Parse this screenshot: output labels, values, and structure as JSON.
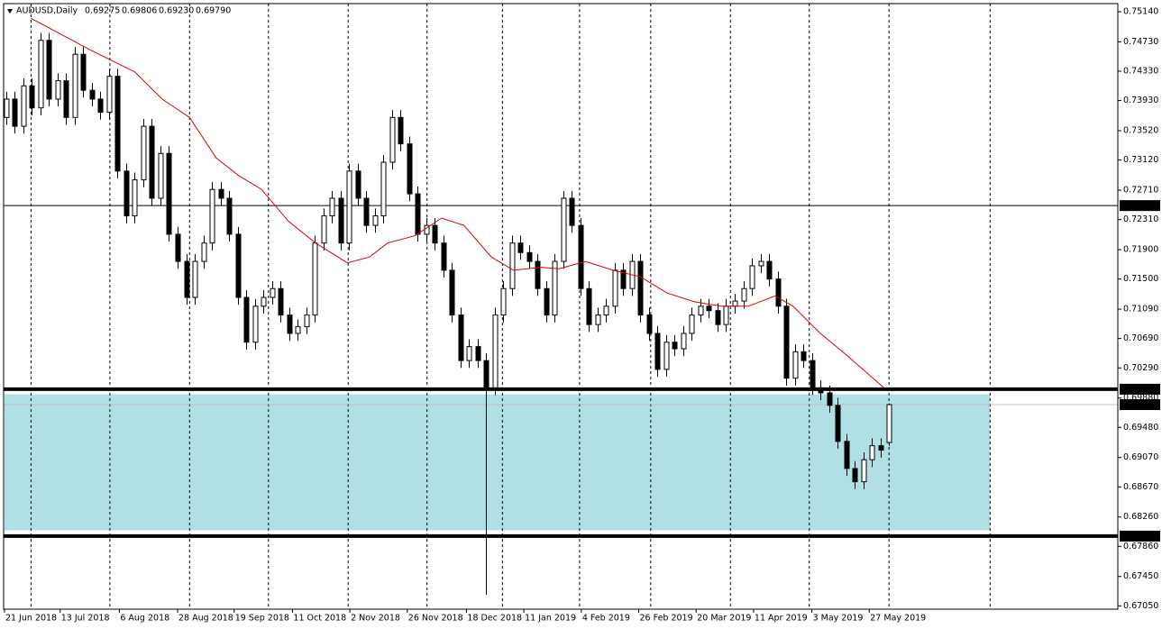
{
  "chart_data": {
    "type": "candlestick",
    "title": "AUDUSD,Daily",
    "header_prices": [
      "0.69275",
      "0.69806",
      "0.69230",
      "0.69790"
    ],
    "open": [
      0.737,
      0.7395,
      0.7358,
      0.7413,
      0.7383,
      0.7475,
      0.7395,
      0.742,
      0.737,
      0.7456,
      0.7407,
      0.7395,
      0.7377,
      0.7426,
      0.7297,
      0.7236,
      0.7285,
      0.7358,
      0.726,
      0.7321,
      0.7211,
      0.7174,
      0.7125,
      0.7174,
      0.7199,
      0.7272,
      0.726,
      0.7211,
      0.7125,
      0.7064,
      0.7113,
      0.7125,
      0.7137,
      0.7101,
      0.7076,
      0.7085,
      0.7101,
      0.7199,
      0.7236,
      0.726,
      0.7199,
      0.7297,
      0.726,
      0.7223,
      0.7236,
      0.7309,
      0.737,
      0.7334,
      0.7266,
      0.7211,
      0.7223,
      0.7199,
      0.7162,
      0.7101,
      0.7039,
      0.7058,
      0.7039,
      0.7002,
      0.7101,
      0.7137,
      0.7199,
      0.7186,
      0.7174,
      0.7137,
      0.7101,
      0.7174,
      0.726,
      0.7223,
      0.7137,
      0.7088,
      0.7101,
      0.7113,
      0.7162,
      0.7137,
      0.7174,
      0.7101,
      0.7076,
      0.7027,
      0.7064,
      0.7055,
      0.7076,
      0.7101,
      0.7113,
      0.7107,
      0.7088,
      0.7113,
      0.712,
      0.7137,
      0.7168,
      0.7174,
      0.715,
      0.7113,
      0.7015,
      0.7051,
      0.7039,
      0.7002,
      0.6995,
      0.6978,
      0.6929,
      0.6892,
      0.6874,
      0.6904,
      0.6923,
      0.69275
    ],
    "high": [
      0.7405,
      0.7405,
      0.7423,
      0.7423,
      0.7485,
      0.7485,
      0.743,
      0.743,
      0.7466,
      0.7466,
      0.7417,
      0.7405,
      0.7436,
      0.7436,
      0.7307,
      0.7295,
      0.7368,
      0.7368,
      0.7331,
      0.7331,
      0.7221,
      0.7184,
      0.7184,
      0.7209,
      0.7282,
      0.7282,
      0.727,
      0.7221,
      0.7135,
      0.7123,
      0.7135,
      0.7147,
      0.7147,
      0.7111,
      0.7095,
      0.7111,
      0.7209,
      0.7246,
      0.727,
      0.727,
      0.7307,
      0.7307,
      0.727,
      0.7246,
      0.7319,
      0.738,
      0.738,
      0.7344,
      0.7276,
      0.7233,
      0.7233,
      0.7209,
      0.7172,
      0.7111,
      0.7068,
      0.7068,
      0.7049,
      0.7111,
      0.7147,
      0.7209,
      0.7209,
      0.7196,
      0.7184,
      0.7147,
      0.7184,
      0.727,
      0.727,
      0.7233,
      0.7147,
      0.7111,
      0.7123,
      0.7172,
      0.7172,
      0.7184,
      0.7184,
      0.7111,
      0.7086,
      0.7074,
      0.7074,
      0.7086,
      0.7111,
      0.7123,
      0.7123,
      0.7117,
      0.7123,
      0.713,
      0.7147,
      0.7178,
      0.7184,
      0.7184,
      0.716,
      0.7123,
      0.7061,
      0.7061,
      0.7049,
      0.7012,
      0.7005,
      0.6988,
      0.6939,
      0.6902,
      0.6914,
      0.6933,
      0.6933,
      0.69806
    ],
    "low": [
      0.736,
      0.7348,
      0.7348,
      0.7373,
      0.7373,
      0.7385,
      0.7385,
      0.736,
      0.736,
      0.7397,
      0.7385,
      0.7367,
      0.7367,
      0.7287,
      0.7226,
      0.7226,
      0.7275,
      0.725,
      0.725,
      0.7201,
      0.7164,
      0.7115,
      0.7115,
      0.7164,
      0.7189,
      0.725,
      0.7201,
      0.7115,
      0.7054,
      0.7054,
      0.7103,
      0.7115,
      0.7091,
      0.7066,
      0.7066,
      0.7075,
      0.7091,
      0.7189,
      0.7226,
      0.7189,
      0.7189,
      0.725,
      0.7213,
      0.7213,
      0.7226,
      0.7299,
      0.7324,
      0.7256,
      0.7201,
      0.7201,
      0.7189,
      0.7152,
      0.7091,
      0.7029,
      0.7029,
      0.7029,
      0.672,
      0.6992,
      0.7091,
      0.7127,
      0.7176,
      0.7164,
      0.7127,
      0.7091,
      0.7091,
      0.7164,
      0.7213,
      0.7127,
      0.7078,
      0.7078,
      0.7091,
      0.7103,
      0.7127,
      0.7127,
      0.7091,
      0.7066,
      0.7017,
      0.7017,
      0.7045,
      0.7045,
      0.7066,
      0.7091,
      0.7097,
      0.7078,
      0.7078,
      0.7103,
      0.711,
      0.7127,
      0.7158,
      0.714,
      0.7103,
      0.7005,
      0.7005,
      0.7029,
      0.6992,
      0.6985,
      0.6968,
      0.6919,
      0.6882,
      0.6864,
      0.6864,
      0.6894,
      0.6907,
      0.6923
    ],
    "close": [
      0.7395,
      0.7358,
      0.7413,
      0.7383,
      0.7475,
      0.7395,
      0.742,
      0.737,
      0.7456,
      0.7407,
      0.7395,
      0.7377,
      0.7426,
      0.7297,
      0.7236,
      0.7285,
      0.7358,
      0.726,
      0.7321,
      0.7211,
      0.7174,
      0.7125,
      0.7174,
      0.7199,
      0.7272,
      0.726,
      0.7211,
      0.7125,
      0.7064,
      0.7113,
      0.7125,
      0.7137,
      0.7101,
      0.7076,
      0.7085,
      0.7101,
      0.7199,
      0.7236,
      0.726,
      0.7199,
      0.7297,
      0.726,
      0.7223,
      0.7236,
      0.7309,
      0.737,
      0.7334,
      0.7266,
      0.7211,
      0.7223,
      0.7199,
      0.7162,
      0.7101,
      0.7039,
      0.7058,
      0.7039,
      0.7002,
      0.7101,
      0.7137,
      0.7199,
      0.7186,
      0.7174,
      0.7137,
      0.7101,
      0.7174,
      0.726,
      0.7223,
      0.7137,
      0.7088,
      0.7101,
      0.7113,
      0.7162,
      0.7137,
      0.7174,
      0.7101,
      0.7076,
      0.7027,
      0.7064,
      0.7055,
      0.7076,
      0.7101,
      0.7113,
      0.7107,
      0.7088,
      0.7113,
      0.712,
      0.7137,
      0.7168,
      0.7174,
      0.715,
      0.7113,
      0.7015,
      0.7051,
      0.7039,
      0.7002,
      0.6995,
      0.6978,
      0.6929,
      0.6892,
      0.6874,
      0.6904,
      0.6923,
      0.6917,
      0.6979
    ],
    "up_color": "#ffffff",
    "down_color": "#000000",
    "ma": {
      "color": "#dd0000",
      "x": [
        2.9,
        9.8,
        15,
        18.2,
        21.4,
        24.5,
        27.1,
        29.8,
        32.9,
        36.1,
        39.8,
        42.4,
        44.5,
        47.7,
        50.8,
        53.4,
        56.6,
        59.2,
        62.4,
        64.5,
        67.6,
        70.8,
        74,
        77.1,
        80.3,
        83.4,
        86.6,
        89.7,
        91.8,
        95,
        98.2,
        102.4
      ],
      "values": [
        0.7505,
        0.7462,
        0.7432,
        0.7395,
        0.737,
        0.7315,
        0.7291,
        0.7272,
        0.7229,
        0.7199,
        0.7172,
        0.718,
        0.7199,
        0.7209,
        0.7233,
        0.7223,
        0.718,
        0.7162,
        0.7166,
        0.7164,
        0.7174,
        0.7162,
        0.7153,
        0.7131,
        0.7119,
        0.7113,
        0.7113,
        0.7127,
        0.7113,
        0.7076,
        0.7045,
        0.7002
      ]
    },
    "zone": {
      "low": 0.6808,
      "high": 0.6993,
      "x_end": 114.8,
      "color": "#b0dfe5"
    },
    "levels": [
      {
        "value": 0.725,
        "label": "0.72500",
        "width": 1
      },
      {
        "value": 0.7,
        "label": "0.70000",
        "width": 4
      },
      {
        "value": 0.68,
        "label": "0.68000",
        "width": 4
      }
    ],
    "current": {
      "value": 0.6979,
      "label": "0.69790"
    },
    "xlim": [
      -0.3,
      129.7
    ],
    "ylim": [
      0.67005,
      0.7525
    ],
    "vgrid": [
      2.9,
      12.1,
      21.4,
      30.6,
      39.9,
      49.1,
      57.9,
      66.9,
      75.2,
      84.5,
      93.7,
      103,
      114.8
    ],
    "xticks": [
      {
        "value": -0.2,
        "label": "21 Jun 2018"
      },
      {
        "value": 6.3,
        "label": "13 Jul 2018"
      },
      {
        "value": 13.2,
        "label": "6 Aug 2018"
      },
      {
        "value": 20,
        "label": "28 Aug 2018"
      },
      {
        "value": 26.6,
        "label": "19 Sep 2018"
      },
      {
        "value": 33.4,
        "label": "11 Oct 2018"
      },
      {
        "value": 40.1,
        "label": "2 Nov 2018"
      },
      {
        "value": 46.8,
        "label": "26 Nov 2018"
      },
      {
        "value": 53.7,
        "label": "18 Dec 2018"
      },
      {
        "value": 60.4,
        "label": "11 Jan 2019"
      },
      {
        "value": 67.1,
        "label": "4 Feb 2019"
      },
      {
        "value": 73.8,
        "label": "26 Feb 2019"
      },
      {
        "value": 80.5,
        "label": "20 Mar 2019"
      },
      {
        "value": 87.2,
        "label": "11 Apr 2019"
      },
      {
        "value": 94,
        "label": "3 May 2019"
      },
      {
        "value": 100.7,
        "label": "27 May 2019"
      }
    ],
    "yticks": [
      {
        "value": 0.7514,
        "label": "0.75140"
      },
      {
        "value": 0.7473,
        "label": "0.74730"
      },
      {
        "value": 0.7433,
        "label": "0.74330"
      },
      {
        "value": 0.7393,
        "label": "0.73930"
      },
      {
        "value": 0.7352,
        "label": "0.73520"
      },
      {
        "value": 0.7312,
        "label": "0.73120"
      },
      {
        "value": 0.7271,
        "label": "0.72710"
      },
      {
        "value": 0.7231,
        "label": "0.72310"
      },
      {
        "value": 0.719,
        "label": "0.71900"
      },
      {
        "value": 0.715,
        "label": "0.71500"
      },
      {
        "value": 0.7109,
        "label": "0.71090"
      },
      {
        "value": 0.7069,
        "label": "0.70690"
      },
      {
        "value": 0.7029,
        "label": "0.70290"
      },
      {
        "value": 0.6988,
        "label": "0.69880"
      },
      {
        "value": 0.6948,
        "label": "0.69480"
      },
      {
        "value": 0.6907,
        "label": "0.69070"
      },
      {
        "value": 0.6867,
        "label": "0.68670"
      },
      {
        "value": 0.6826,
        "label": "0.68260"
      },
      {
        "value": 0.6786,
        "label": "0.67860"
      },
      {
        "value": 0.6745,
        "label": "0.67450"
      },
      {
        "value": 0.6705,
        "label": "0.67050"
      }
    ]
  }
}
